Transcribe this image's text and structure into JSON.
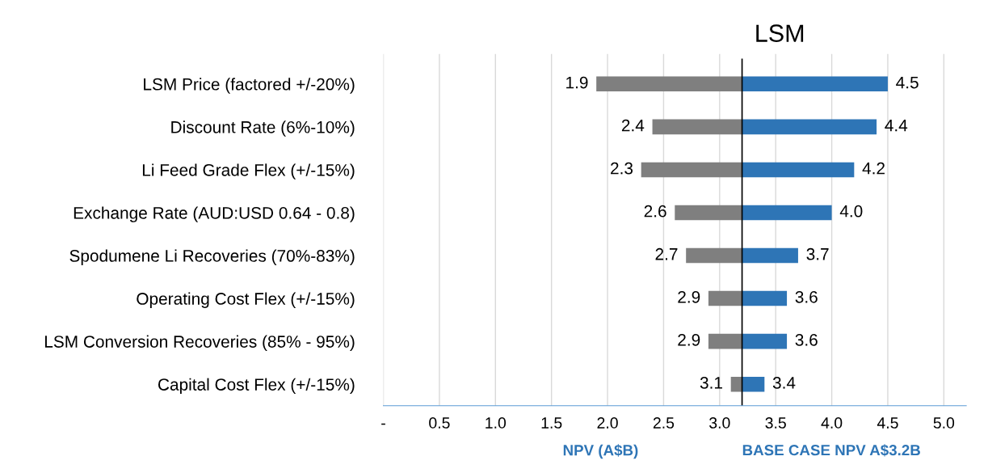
{
  "chart_data": {
    "type": "bar",
    "orientation": "horizontal",
    "title": "LSM",
    "xlabel": "NPV (A$B)",
    "categories": [
      "LSM Price (factored +/-20%)",
      "Discount Rate (6%-10%)",
      "Li Feed Grade Flex (+/-15%)",
      "Exchange Rate (AUD:USD 0.64 - 0.8)",
      "Spodumene Li Recoveries (70%-83%)",
      "Operating Cost Flex (+/-15%)",
      "LSM Conversion Recoveries (85% - 95%)",
      "Capital Cost Flex (+/-15%)"
    ],
    "series": [
      {
        "color": "#7f7f7f",
        "base": [
          3.2,
          3.2,
          3.2,
          3.2,
          3.2,
          3.2,
          3.2,
          3.2
        ],
        "values": [
          -1.3,
          -0.8,
          -0.9,
          -0.6,
          -0.5,
          -0.3,
          -0.3,
          -0.1
        ],
        "value_labels": [
          "1.9",
          "2.4",
          "2.3",
          "2.6",
          "2.7",
          "2.9",
          "2.9",
          "3.1"
        ]
      },
      {
        "color": "#2e75b6",
        "base": [
          3.2,
          3.2,
          3.2,
          3.2,
          3.2,
          3.2,
          3.2,
          3.2
        ],
        "values": [
          1.3,
          1.2,
          1.0,
          0.8,
          0.5,
          0.4,
          0.4,
          0.2
        ],
        "value_labels": [
          "4.5",
          "4.4",
          "4.2",
          "4.0",
          "3.7",
          "3.6",
          "3.6",
          "3.4"
        ]
      }
    ],
    "xlim": [
      0,
      5.2
    ],
    "xticks": [
      {
        "value": 0,
        "label": "-"
      },
      0.5,
      {
        "value": 1,
        "label": "1.0"
      },
      1.5,
      {
        "value": 2,
        "label": "2.0"
      },
      2.5,
      {
        "value": 3,
        "label": "3.0"
      },
      3.5,
      {
        "value": 4,
        "label": "4.0"
      },
      4.5,
      {
        "value": 5,
        "label": "5.0"
      }
    ],
    "grid": "x",
    "legend": false,
    "ref_lines": [
      {
        "axis": "x",
        "value": 3.2,
        "label": "BASE CASE NPV A$3.2B",
        "color": "#000000"
      }
    ]
  }
}
